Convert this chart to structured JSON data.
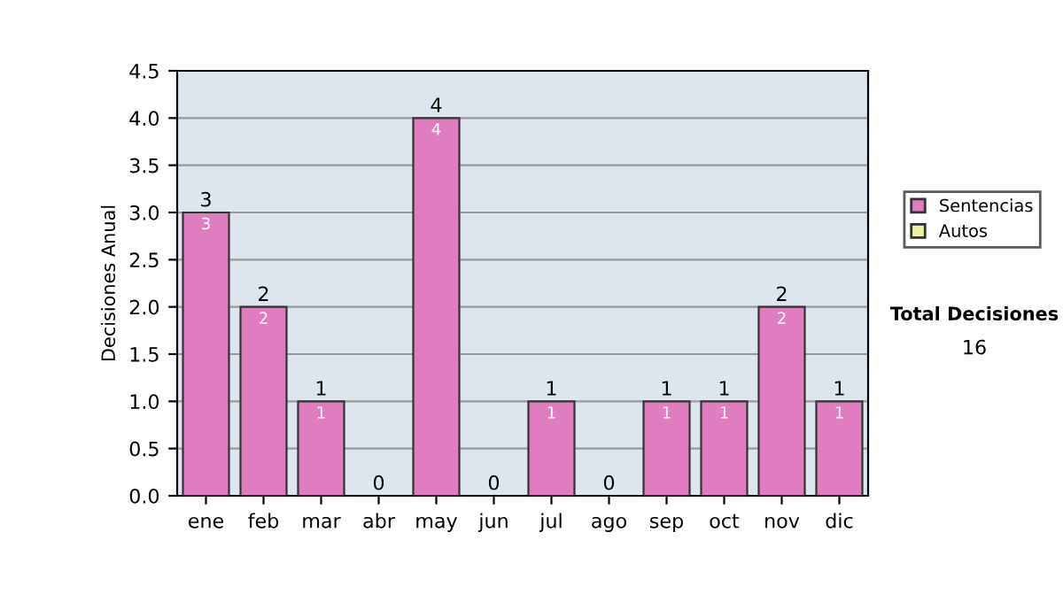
{
  "chart_data": {
    "type": "bar",
    "ylabel": "Decisiones Anual",
    "categories": [
      "ene",
      "feb",
      "mar",
      "abr",
      "may",
      "jun",
      "jul",
      "ago",
      "sep",
      "oct",
      "nov",
      "dic"
    ],
    "series": [
      {
        "name": "Sentencias",
        "color": "#e07cc0",
        "values": [
          3,
          2,
          1,
          0,
          4,
          0,
          1,
          0,
          1,
          1,
          2,
          1
        ],
        "value_labels": [
          "3",
          "2",
          "1",
          null,
          "4",
          null,
          "1",
          null,
          "1",
          "1",
          "2",
          "1"
        ]
      },
      {
        "name": "Autos",
        "color": "#eef0a8",
        "values": [
          0,
          0,
          0,
          0,
          0,
          0,
          0,
          0,
          0,
          0,
          0,
          0
        ]
      }
    ],
    "stacked": true,
    "totals": [
      "3",
      "2",
      "1",
      "0",
      "4",
      "0",
      "1",
      "0",
      "1",
      "1",
      "2",
      "1"
    ],
    "ylim": [
      0,
      4.5
    ],
    "yticks": [
      {
        "value": 0,
        "label": "0.0"
      },
      {
        "value": 0.5,
        "label": "0.5"
      },
      {
        "value": 1,
        "label": "1.0"
      },
      {
        "value": 1.5,
        "label": "1.5"
      },
      {
        "value": 2,
        "label": "2.0"
      },
      {
        "value": 2.5,
        "label": "2.5"
      },
      {
        "value": 3,
        "label": "3.0"
      },
      {
        "value": 3.5,
        "label": "3.5"
      },
      {
        "value": 4,
        "label": "4.0"
      },
      {
        "value": 4.5,
        "label": "4.5"
      }
    ],
    "grid": "y",
    "legend": "right",
    "annotations": [
      "Total Decisiones",
      "16"
    ]
  }
}
